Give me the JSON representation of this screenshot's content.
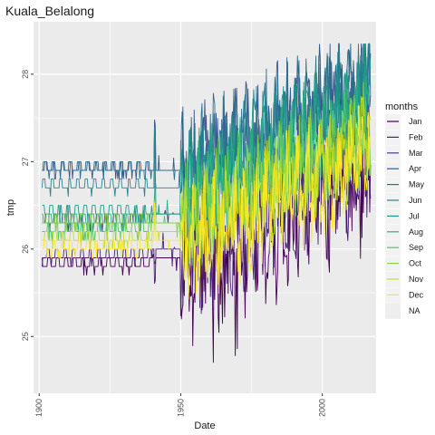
{
  "chart_data": {
    "type": "line",
    "title": "Kuala_Belalong",
    "xlabel": "Date",
    "ylabel": "tmp",
    "xlim": [
      1898,
      2019
    ],
    "ylim": [
      24.35,
      28.6
    ],
    "x_ticks": [
      1900,
      1950,
      2000
    ],
    "x_minor_ticks": [
      1925,
      1975
    ],
    "y_ticks": [
      25,
      26,
      27,
      28
    ],
    "y_minor_ticks": [
      25.5,
      26.5,
      27.5
    ],
    "grid": true,
    "panel_background": "#ebebeb",
    "grid_color": "#ffffff",
    "legend": {
      "title": "months",
      "position": "right",
      "entries": [
        "Jan",
        "Feb",
        "Mar",
        "Apr",
        "May",
        "Jun",
        "Jul",
        "Aug",
        "Sep",
        "Oct",
        "Nov",
        "Dec",
        "NA"
      ]
    },
    "series": [
      {
        "name": "Jan",
        "color": "#440154",
        "base1": 25.8,
        "base2": 25.9,
        "modern": 25.7,
        "trend": 0.017,
        "amp": 0.55,
        "phase": 0.3
      },
      {
        "name": "Feb",
        "color": "#482173",
        "base1": 25.9,
        "base2": 26.0,
        "modern": 25.9,
        "trend": 0.017,
        "amp": 0.5,
        "phase": 1.1
      },
      {
        "name": "Mar",
        "color": "#433e85",
        "base1": 26.3,
        "base2": 26.4,
        "modern": 26.4,
        "trend": 0.016,
        "amp": 0.45,
        "phase": 2.0
      },
      {
        "name": "Apr",
        "color": "#38598c",
        "base1": 26.9,
        "base2": 26.9,
        "modern": 26.9,
        "trend": 0.016,
        "amp": 0.45,
        "phase": 2.7
      },
      {
        "name": "May",
        "color": "#2d708e",
        "base1": 26.9,
        "base2": 26.9,
        "modern": 26.9,
        "trend": 0.015,
        "amp": 0.45,
        "phase": 3.5
      },
      {
        "name": "Jun",
        "color": "#25858e",
        "base1": 26.7,
        "base2": 26.7,
        "modern": 26.8,
        "trend": 0.015,
        "amp": 0.4,
        "phase": 4.2
      },
      {
        "name": "Jul",
        "color": "#1e9b8a",
        "base1": 26.4,
        "base2": 26.4,
        "modern": 26.7,
        "trend": 0.015,
        "amp": 0.4,
        "phase": 5.0
      },
      {
        "name": "Aug",
        "color": "#2ab07f",
        "base1": 26.3,
        "base2": 26.4,
        "modern": 26.5,
        "trend": 0.015,
        "amp": 0.4,
        "phase": 5.8
      },
      {
        "name": "Sep",
        "color": "#52c569",
        "base1": 26.2,
        "base2": 26.3,
        "modern": 26.4,
        "trend": 0.015,
        "amp": 0.4,
        "phase": 0.7
      },
      {
        "name": "Oct",
        "color": "#86d549",
        "base1": 26.3,
        "base2": 26.3,
        "modern": 26.3,
        "trend": 0.015,
        "amp": 0.4,
        "phase": 1.6
      },
      {
        "name": "Nov",
        "color": "#c2df23",
        "base1": 26.1,
        "base2": 26.2,
        "modern": 26.2,
        "trend": 0.015,
        "amp": 0.4,
        "phase": 2.4
      },
      {
        "name": "Dec",
        "color": "#fde725",
        "base1": 26.0,
        "base2": 26.1,
        "modern": 26.0,
        "trend": 0.016,
        "amp": 0.45,
        "phase": 3.2
      }
    ],
    "na_color": "#eeeeee"
  }
}
